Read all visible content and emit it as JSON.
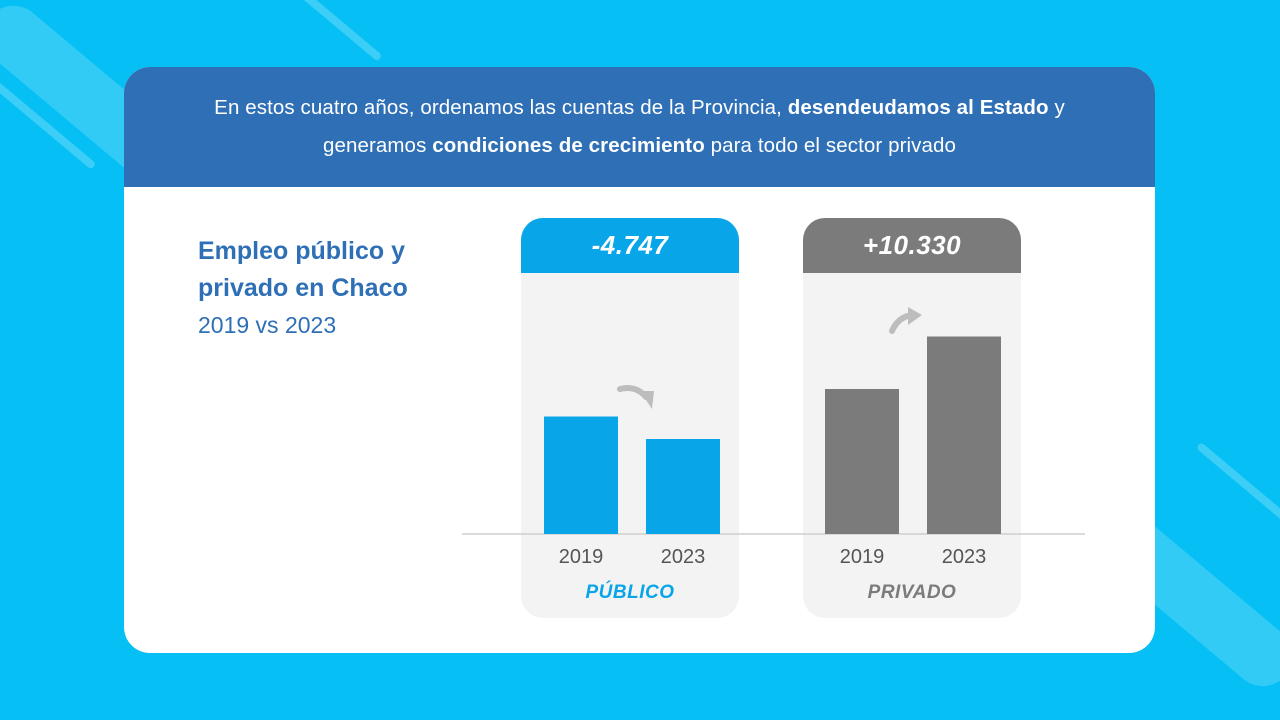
{
  "banner": {
    "p1": "En estos cuatro años, ordenamos las cuentas de la Provincia, ",
    "b1": "desendeudamos al Estado",
    "p2": " y generamos ",
    "b2": "condiciones de crecimiento",
    "p3": " para todo el sector privado"
  },
  "title": {
    "line1": "Empleo público y",
    "line2": "privado en Chaco",
    "line3": "2019 vs 2023"
  },
  "colors": {
    "publico": "#08a5e8",
    "privado": "#7b7b7b",
    "banner": "#2e6fb5",
    "background": "#06c0f5"
  },
  "chart_data": {
    "type": "bar",
    "title": "Empleo público y privado en Chaco",
    "subtitle": "2019 vs 2023",
    "categories": [
      "2019",
      "2023"
    ],
    "ylim": [
      0,
      100
    ],
    "series": [
      {
        "name": "PÚBLICO",
        "change_label": "-4.747",
        "trend": "down",
        "values": [
          47,
          38
        ]
      },
      {
        "name": "PRIVADO",
        "change_label": "+10.330",
        "trend": "up",
        "values": [
          58,
          79
        ]
      }
    ]
  }
}
